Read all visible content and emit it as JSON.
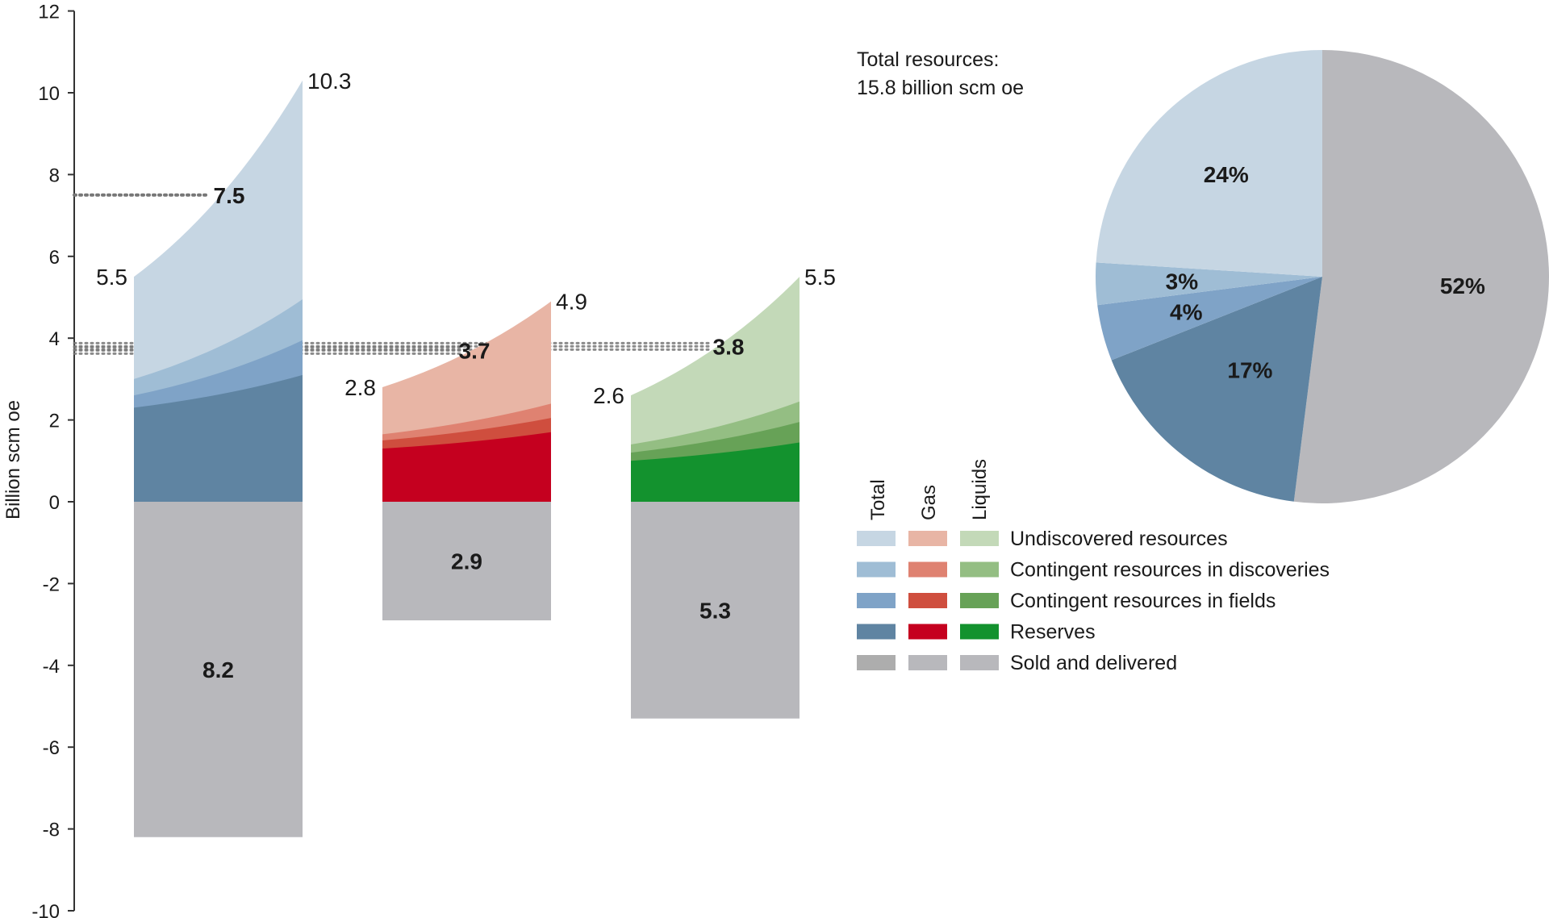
{
  "chart_data": [
    {
      "type": "area",
      "ylabel": "Billion scm oe",
      "ylim": [
        -10,
        12
      ],
      "yticks": [
        -10,
        -8,
        -6,
        -4,
        -2,
        0,
        2,
        4,
        6,
        8,
        10,
        12
      ],
      "grid": false,
      "columns": [
        {
          "name": "Total",
          "left_top": 5.5,
          "right_top": 10.3,
          "reference_value": 7.5,
          "sold_and_delivered": 8.2,
          "stack_left": {
            "reserves": 2.3,
            "contingent_fields": 2.6,
            "contingent_discoveries": 3.0,
            "undiscovered": 5.5
          },
          "stack_right": {
            "reserves": 3.1,
            "contingent_fields": 3.95,
            "contingent_discoveries": 4.95,
            "undiscovered": 10.3
          },
          "labels": {
            "left_top": "5.5",
            "right_top": "10.3",
            "reference": "7.5",
            "sold": "8.2"
          }
        },
        {
          "name": "Gas",
          "left_top": 2.8,
          "right_top": 4.9,
          "reference_value": 3.7,
          "sold_and_delivered": 2.9,
          "stack_left": {
            "reserves": 1.3,
            "contingent_fields": 1.5,
            "contingent_discoveries": 1.65,
            "undiscovered": 2.8
          },
          "stack_right": {
            "reserves": 1.7,
            "contingent_fields": 2.05,
            "contingent_discoveries": 2.4,
            "undiscovered": 4.9
          },
          "labels": {
            "left_top": "2.8",
            "right_top": "4.9",
            "reference": "3.7",
            "sold": "2.9"
          }
        },
        {
          "name": "Liquids",
          "left_top": 2.6,
          "right_top": 5.5,
          "reference_value": 3.8,
          "sold_and_delivered": 5.3,
          "stack_left": {
            "reserves": 1.0,
            "contingent_fields": 1.2,
            "contingent_discoveries": 1.4,
            "undiscovered": 2.6
          },
          "stack_right": {
            "reserves": 1.45,
            "contingent_fields": 1.95,
            "contingent_discoveries": 2.45,
            "undiscovered": 5.5
          },
          "labels": {
            "left_top": "2.6",
            "right_top": "5.5",
            "reference": "3.8",
            "sold": "5.3"
          }
        }
      ]
    },
    {
      "type": "pie",
      "title_lines": [
        "Total resources:",
        "15.8 billion scm oe"
      ],
      "slices": [
        {
          "name": "Sold and delivered",
          "value": 52,
          "label": "52%",
          "color": "#b8b8bc"
        },
        {
          "name": "Reserves",
          "value": 17,
          "label": "17%",
          "color": "#5f84a2"
        },
        {
          "name": "Contingent resources in fields",
          "value": 4,
          "label": "4%",
          "color": "#7fa3c7"
        },
        {
          "name": "Contingent resources in discoveries",
          "value": 3,
          "label": "3%",
          "color": "#9fbdd5"
        },
        {
          "name": "Undiscovered resources",
          "value": 24,
          "label": "24%",
          "color": "#c6d6e3"
        }
      ]
    }
  ],
  "legend": {
    "column_headers": [
      "Total",
      "Gas",
      "Liquids"
    ],
    "rows": [
      {
        "label": "Undiscovered resources",
        "colors": [
          "#c6d6e3",
          "#e8b5a5",
          "#c3d9b8"
        ]
      },
      {
        "label": "Contingent resources in discoveries",
        "colors": [
          "#9fbdd5",
          "#df8271",
          "#94be83"
        ]
      },
      {
        "label": "Contingent resources in fields",
        "colors": [
          "#7fa3c7",
          "#cf4e3e",
          "#67a257"
        ]
      },
      {
        "label": "Reserves",
        "colors": [
          "#5f84a2",
          "#c5001f",
          "#13922e"
        ]
      },
      {
        "label": "Sold and delivered",
        "colors": [
          "#adadad",
          "#b8b8bc",
          "#b8b8bc"
        ]
      }
    ]
  },
  "colors": {
    "total": [
      "#5f84a2",
      "#7fa3c7",
      "#9fbdd5",
      "#c6d6e3"
    ],
    "gas": [
      "#c5001f",
      "#cf4e3e",
      "#df8271",
      "#e8b5a5"
    ],
    "liquids": [
      "#13922e",
      "#67a257",
      "#94be83",
      "#c3d9b8"
    ],
    "sold": "#b8b8bc",
    "dotted_line": "#777777"
  }
}
